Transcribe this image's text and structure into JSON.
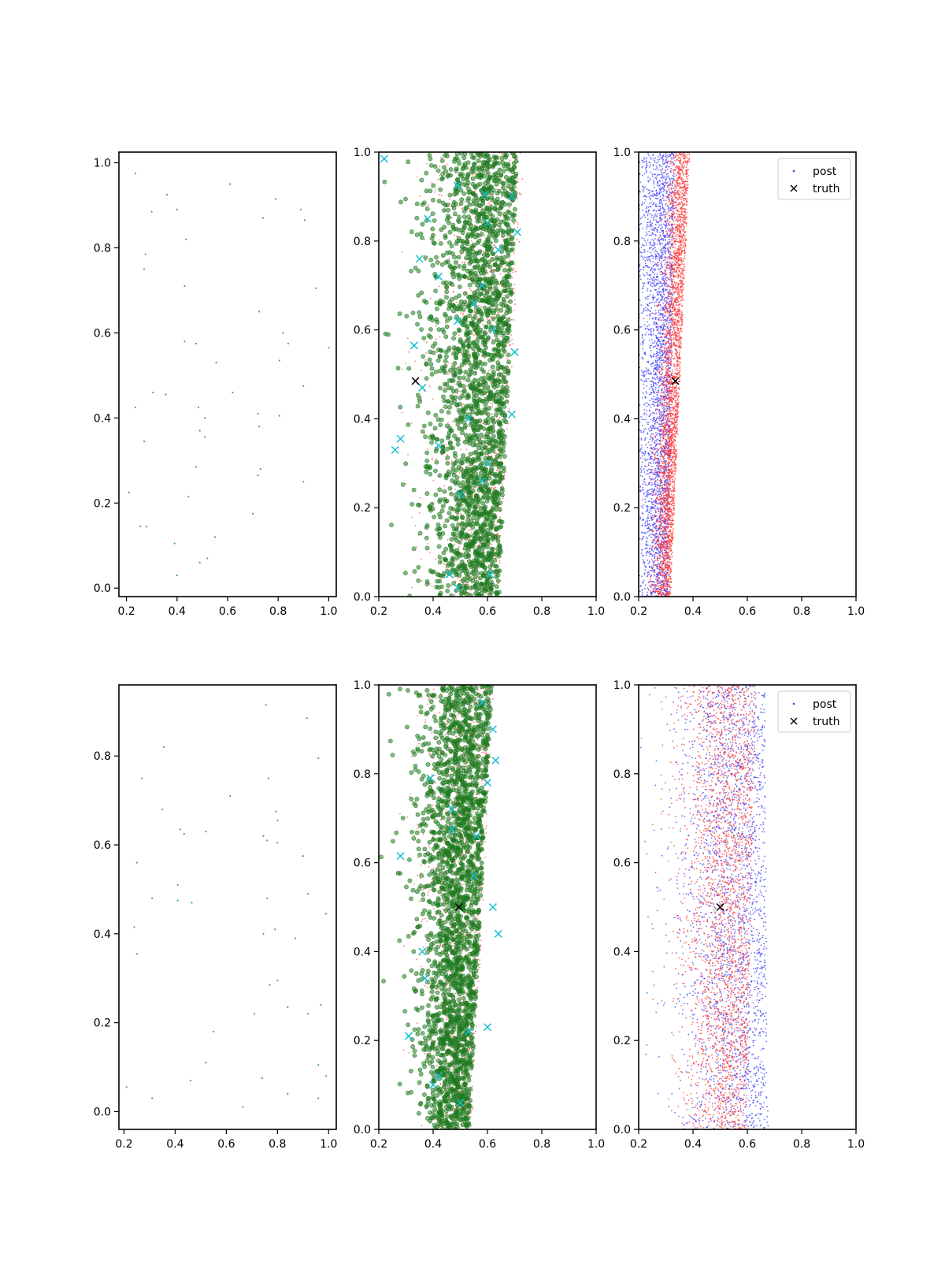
{
  "chart_data": [
    {
      "type": "scatter",
      "panel": "row1-left",
      "xlim": [
        0.17,
        1.03
      ],
      "ylim": [
        -0.02,
        1.025
      ],
      "xticks": [
        "0.2",
        "0.4",
        "0.6",
        "0.8",
        "1.0"
      ],
      "yticks": [
        "0.0",
        "0.2",
        "0.4",
        "0.6",
        "0.8",
        "1.0"
      ],
      "series": [
        {
          "color": "#3cb043",
          "marker": "dot",
          "x": [
            0.235,
            0.36,
            0.61,
            0.79,
            0.3,
            0.4,
            0.89,
            0.905,
            0.74,
            0.275,
            0.435,
            0.27,
            0.43,
            0.95,
            0.725,
            0.82,
            0.43,
            0.475,
            0.84,
            0.555,
            0.805,
            0.305,
            0.355,
            0.62,
            0.9,
            0.485,
            0.51,
            0.72,
            0.805,
            0.725,
            0.235,
            0.27,
            0.49,
            0.51,
            0.475,
            0.73,
            0.72,
            0.445,
            0.21,
            0.9,
            0.7,
            0.255,
            0.28,
            0.55,
            0.39,
            0.52,
            0.49,
            0.4,
            1.0
          ],
          "y": [
            0.975,
            0.925,
            0.95,
            0.915,
            0.885,
            0.89,
            0.89,
            0.865,
            0.87,
            0.785,
            0.82,
            0.75,
            0.71,
            0.705,
            0.65,
            0.6,
            0.58,
            0.575,
            0.575,
            0.53,
            0.535,
            0.46,
            0.455,
            0.46,
            0.475,
            0.425,
            0.4,
            0.41,
            0.405,
            0.38,
            0.425,
            0.345,
            0.37,
            0.355,
            0.285,
            0.28,
            0.265,
            0.215,
            0.225,
            0.25,
            0.175,
            0.145,
            0.145,
            0.12,
            0.105,
            0.07,
            0.06,
            0.03,
            0.565
          ]
        }
      ]
    },
    {
      "type": "scatter",
      "panel": "row1-middle",
      "xlim": [
        0.2,
        1.0
      ],
      "ylim": [
        0.0,
        1.0
      ],
      "xticks": [
        "0.2",
        "0.4",
        "0.6",
        "0.8",
        "1.0"
      ],
      "yticks": [
        "0.0",
        "0.2",
        "0.4",
        "0.6",
        "0.8",
        "1.0"
      ],
      "series": [
        {
          "color": "#ff4d4d",
          "marker": "small-dot",
          "distribution": {
            "n": 1300,
            "y_range": [
              0,
              1
            ],
            "x_center_at_y0": 0.58,
            "x_center_at_y1": 0.66,
            "x_spread_at_y0": 0.17,
            "x_spread_at_y1": 0.22
          }
        },
        {
          "color": "#1f7a1f",
          "marker": "circle",
          "distribution": {
            "n": 2200,
            "y_range": [
              0,
              1
            ],
            "x_center_at_y0": 0.58,
            "x_center_at_y1": 0.63,
            "x_spread_at_y0": 0.18,
            "x_spread_at_y1": 0.23
          }
        },
        {
          "color": "#17becf",
          "marker": "x",
          "x": [
            0.22,
            0.49,
            0.59,
            0.69,
            0.35,
            0.38,
            0.42,
            0.64,
            0.55,
            0.49,
            0.58,
            0.62,
            0.33,
            0.36,
            0.42,
            0.69,
            0.28,
            0.26,
            0.5,
            0.58,
            0.6,
            0.46,
            0.49,
            0.61,
            0.71,
            0.6,
            0.53,
            0.7
          ],
          "y": [
            0.985,
            0.925,
            0.905,
            0.9,
            0.76,
            0.85,
            0.72,
            0.78,
            0.66,
            0.62,
            0.7,
            0.6,
            0.565,
            0.47,
            0.34,
            0.41,
            0.355,
            0.33,
            0.23,
            0.26,
            0.3,
            0.05,
            0.02,
            0.05,
            0.82,
            0.84,
            0.4,
            0.55
          ]
        },
        {
          "color": "#000000",
          "marker": "x",
          "x": [
            0.335
          ],
          "y": [
            0.485
          ]
        }
      ]
    },
    {
      "type": "scatter",
      "panel": "row1-right",
      "xlim": [
        0.2,
        1.0
      ],
      "ylim": [
        0.0,
        1.0
      ],
      "xticks": [
        "0.2",
        "0.4",
        "0.6",
        "0.8",
        "1.0"
      ],
      "yticks": [
        "0.0",
        "0.2",
        "0.4",
        "0.6",
        "0.8",
        "1.0"
      ],
      "legend": {
        "position": "upper-right",
        "entries": [
          "post",
          "truth"
        ]
      },
      "series": [
        {
          "name": "post",
          "color": "#3b3bff",
          "marker": "small-dot",
          "distribution": {
            "n": 3000,
            "y_range": [
              0,
              1
            ],
            "x_center_at_y0": 0.28,
            "x_center_at_y1": 0.3,
            "x_spread_at_y0": 0.08,
            "x_spread_at_y1": 0.1
          }
        },
        {
          "color": "#ff3333",
          "marker": "small-dot",
          "distribution": {
            "n": 3000,
            "y_range": [
              0,
              1
            ],
            "x_center_at_y0": 0.3,
            "x_center_at_y1": 0.37,
            "x_spread_at_y0": 0.05,
            "x_spread_at_y1": 0.05
          }
        },
        {
          "name": "truth",
          "color": "#000000",
          "marker": "x",
          "x": [
            0.335
          ],
          "y": [
            0.485
          ]
        }
      ]
    },
    {
      "type": "scatter",
      "panel": "row2-left",
      "xlim": [
        0.18,
        1.03
      ],
      "ylim": [
        -0.04,
        0.96
      ],
      "xticks": [
        "0.2",
        "0.4",
        "0.6",
        "0.8",
        "1.0"
      ],
      "yticks": [
        "0.0",
        "0.2",
        "0.4",
        "0.6",
        "0.8"
      ],
      "series": [
        {
          "color": "#3cb043",
          "marker": "dot",
          "x": [
            0.755,
            0.915,
            0.355,
            0.96,
            0.27,
            0.765,
            0.615,
            0.795,
            0.35,
            0.8,
            0.42,
            0.435,
            0.52,
            0.745,
            0.76,
            0.25,
            0.8,
            0.9,
            0.41,
            0.31,
            0.41,
            0.465,
            0.76,
            0.92,
            0.99,
            0.24,
            0.79,
            0.745,
            0.87,
            0.25,
            0.77,
            0.8,
            0.97,
            0.84,
            0.71,
            0.92,
            0.55,
            0.52,
            0.96,
            0.21,
            0.46,
            0.74,
            0.99,
            0.31,
            0.84,
            0.96,
            0.665
          ],
          "y": [
            0.915,
            0.885,
            0.82,
            0.795,
            0.75,
            0.75,
            0.71,
            0.675,
            0.68,
            0.655,
            0.635,
            0.625,
            0.63,
            0.62,
            0.61,
            0.56,
            0.605,
            0.575,
            0.51,
            0.48,
            0.475,
            0.47,
            0.48,
            0.49,
            0.445,
            0.415,
            0.41,
            0.4,
            0.39,
            0.355,
            0.285,
            0.295,
            0.24,
            0.235,
            0.22,
            0.22,
            0.18,
            0.11,
            0.105,
            0.055,
            0.07,
            0.075,
            0.08,
            0.03,
            0.04,
            0.03,
            0.01
          ]
        }
      ]
    },
    {
      "type": "scatter",
      "panel": "row2-middle",
      "xlim": [
        0.2,
        1.0
      ],
      "ylim": [
        0.0,
        1.0
      ],
      "xticks": [
        "0.2",
        "0.4",
        "0.6",
        "0.8",
        "1.0"
      ],
      "yticks": [
        "0.0",
        "0.2",
        "0.4",
        "0.6",
        "0.8",
        "1.0"
      ],
      "series": [
        {
          "color": "#ff4d4d",
          "marker": "small-dot",
          "distribution": {
            "n": 1300,
            "y_range": [
              0,
              1
            ],
            "x_center_at_y0": 0.5,
            "x_center_at_y1": 0.56,
            "x_spread_at_y0": 0.12,
            "x_spread_at_y1": 0.18
          }
        },
        {
          "color": "#1f7a1f",
          "marker": "circle",
          "distribution": {
            "n": 2300,
            "y_range": [
              0,
              1
            ],
            "x_center_at_y0": 0.49,
            "x_center_at_y1": 0.55,
            "x_spread_at_y0": 0.12,
            "x_spread_at_y1": 0.19
          }
        },
        {
          "color": "#17becf",
          "marker": "x",
          "x": [
            0.58,
            0.62,
            0.39,
            0.63,
            0.28,
            0.47,
            0.55,
            0.36,
            0.37,
            0.31,
            0.4,
            0.6,
            0.62,
            0.64,
            0.53,
            0.6,
            0.47,
            0.5,
            0.42,
            0.56
          ],
          "y": [
            0.96,
            0.9,
            0.79,
            0.83,
            0.615,
            0.675,
            0.57,
            0.4,
            0.34,
            0.21,
            0.1,
            0.23,
            0.5,
            0.44,
            0.22,
            0.78,
            0.72,
            0.06,
            0.12,
            0.66
          ]
        },
        {
          "color": "#000000",
          "marker": "x",
          "x": [
            0.495
          ],
          "y": [
            0.5
          ]
        }
      ]
    },
    {
      "type": "scatter",
      "panel": "row2-right",
      "xlim": [
        0.2,
        1.0
      ],
      "ylim": [
        0.0,
        1.0
      ],
      "xticks": [
        "0.2",
        "0.4",
        "0.6",
        "0.8",
        "1.0"
      ],
      "yticks": [
        "0.0",
        "0.2",
        "0.4",
        "0.6",
        "0.8",
        "1.0"
      ],
      "legend": {
        "position": "upper-right",
        "entries": [
          "post",
          "truth"
        ]
      },
      "series": [
        {
          "name": "post",
          "color": "#3b3bff",
          "marker": "small-dot",
          "distribution": {
            "n": 2400,
            "y_range": [
              0,
              1
            ],
            "x_center_at_y0": 0.6,
            "x_center_at_y1": 0.58,
            "x_spread_at_y0": 0.22,
            "x_spread_at_y1": 0.24
          }
        },
        {
          "color": "#ff3333",
          "marker": "small-dot",
          "distribution": {
            "n": 2400,
            "y_range": [
              0,
              1
            ],
            "x_center_at_y0": 0.54,
            "x_center_at_y1": 0.56,
            "x_spread_at_y0": 0.16,
            "x_spread_at_y1": 0.2
          }
        },
        {
          "name": "truth",
          "color": "#000000",
          "marker": "x",
          "x": [
            0.5
          ],
          "y": [
            0.5
          ]
        }
      ]
    }
  ]
}
